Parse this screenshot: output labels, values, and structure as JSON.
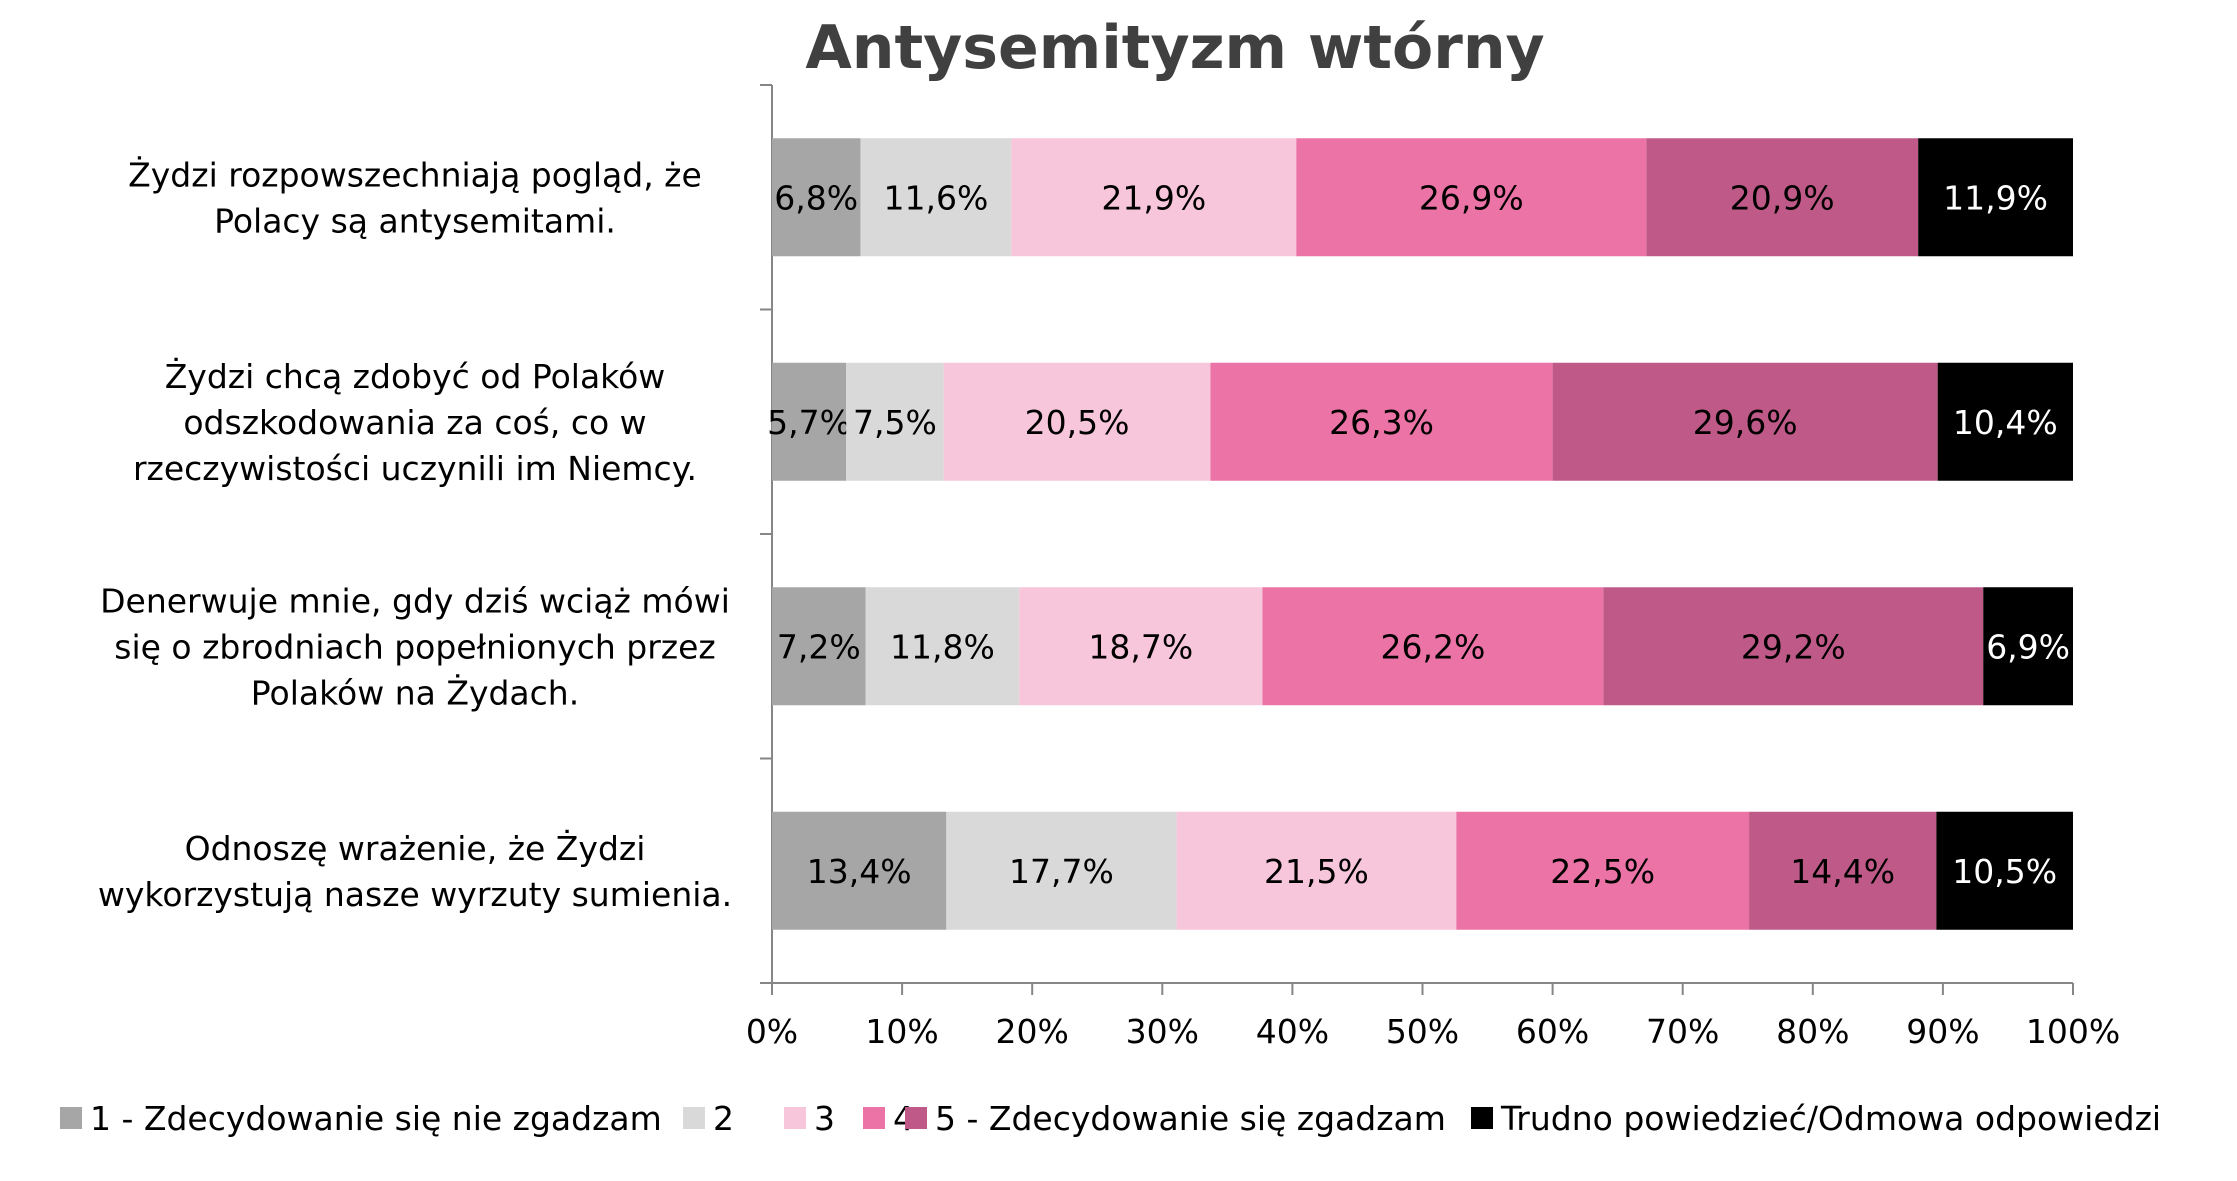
{
  "chart_data": {
    "type": "bar",
    "orientation": "horizontal",
    "stacked": true,
    "title": "Antysemityzm wtórny",
    "categories": [
      [
        "Żydzi rozpowszechniają pogląd, że",
        "Polacy są antysemitami."
      ],
      [
        "Żydzi chcą zdobyć od Polaków",
        "odszkodowania za coś, co w",
        "rzeczywistości uczynili im Niemcy."
      ],
      [
        "Denerwuje mnie, gdy dziś wciąż mówi",
        "się o zbrodniach popełnionych przez",
        "Polaków na Żydach."
      ],
      [
        "Odnoszę wrażenie, że Żydzi",
        "wykorzystują nasze wyrzuty sumienia."
      ]
    ],
    "series": [
      {
        "name": "1 - Zdecydowanie się nie zgadzam",
        "color": "#a6a6a6",
        "label_color": "#000000",
        "values": [
          6.8,
          5.7,
          7.2,
          13.4
        ],
        "labels": [
          "6,8%",
          "5,7%",
          "7,2%",
          "13,4%"
        ]
      },
      {
        "name": "2",
        "color": "#d9d9d9",
        "label_color": "#000000",
        "values": [
          11.6,
          7.5,
          11.8,
          17.7
        ],
        "labels": [
          "11,6%",
          "7,5%",
          "11,8%",
          "17,7%"
        ]
      },
      {
        "name": "3",
        "color": "#f8c6da",
        "label_color": "#000000",
        "values": [
          21.9,
          20.5,
          18.7,
          21.5
        ],
        "labels": [
          "21,9%",
          "20,5%",
          "18,7%",
          "21,5%"
        ]
      },
      {
        "name": "4",
        "color": "#eb73a6",
        "label_color": "#000000",
        "values": [
          26.9,
          26.3,
          26.2,
          22.5
        ],
        "labels": [
          "26,9%",
          "26,3%",
          "26,2%",
          "22,5%"
        ]
      },
      {
        "name": "5 -  Zdecydowanie się zgadzam",
        "color": "#bf5a88",
        "label_color": "#000000",
        "values": [
          20.9,
          29.6,
          29.2,
          14.4
        ],
        "labels": [
          "20,9%",
          "29,6%",
          "29,2%",
          "14,4%"
        ]
      },
      {
        "name": "Trudno powiedzieć/Odmowa odpowiedzi",
        "color": "#000000",
        "label_color": "#ffffff",
        "values": [
          11.9,
          10.4,
          6.9,
          10.5
        ],
        "labels": [
          "11,9%",
          "10,4%",
          "6,9%",
          "10,5%"
        ]
      }
    ],
    "xlim": [
      0,
      100
    ],
    "xticks": [
      0,
      10,
      20,
      30,
      40,
      50,
      60,
      70,
      80,
      90,
      100
    ],
    "xtick_labels": [
      "0%",
      "10%",
      "20%",
      "30%",
      "40%",
      "50%",
      "60%",
      "70%",
      "80%",
      "90%",
      "100%"
    ],
    "grid": false,
    "legend_position": "bottom",
    "axis_color": "#868686"
  }
}
